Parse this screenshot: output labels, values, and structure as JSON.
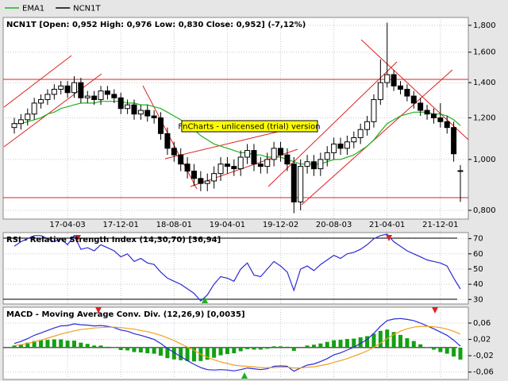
{
  "chart_data": [
    {
      "type": "candlestick",
      "title": "NCN1T [Open: 0,952  High: 0,976  Low: 0,830  Close: 0,952] (-7,12%)",
      "watermark": "FnCharts - unlicensed (trial) version",
      "categories": [
        null,
        null,
        null,
        null,
        null,
        null,
        null,
        null,
        "17-04-03",
        null,
        null,
        null,
        null,
        null,
        null,
        null,
        "17-12-01",
        null,
        null,
        null,
        null,
        null,
        null,
        null,
        "18-08-01",
        null,
        null,
        null,
        null,
        null,
        null,
        null,
        "19-04-01",
        null,
        null,
        null,
        null,
        null,
        null,
        null,
        "19-12-02",
        null,
        null,
        null,
        null,
        null,
        null,
        null,
        "20-08-03",
        null,
        null,
        null,
        null,
        null,
        null,
        null,
        "21-04-01",
        null,
        null,
        null,
        null,
        null,
        null,
        null,
        "21-12-01",
        null,
        null,
        null
      ],
      "log_scale": true,
      "grid": true,
      "ylim": [
        0.77,
        1.85
      ],
      "yticks": [
        {
          "value": 0.8,
          "label": "0,800"
        },
        {
          "value": 1.0,
          "label": "1,000"
        },
        {
          "value": 1.2,
          "label": "1,200"
        },
        {
          "value": 1.4,
          "label": "1,400"
        },
        {
          "value": 1.6,
          "label": "1,600"
        },
        {
          "value": 1.8,
          "label": "1,800"
        }
      ],
      "series": [
        {
          "name": "EMA1",
          "color": "#1fb21f",
          "values": [
            1.17,
            1.17,
            1.18,
            1.19,
            1.2,
            1.22,
            1.23,
            1.25,
            1.26,
            1.27,
            1.28,
            1.28,
            1.28,
            1.29,
            1.29,
            1.29,
            1.29,
            1.28,
            1.28,
            1.27,
            1.27,
            1.26,
            1.25,
            1.23,
            1.21,
            1.19,
            1.16,
            1.14,
            1.11,
            1.09,
            1.07,
            1.06,
            1.05,
            1.04,
            1.03,
            1.03,
            1.02,
            1.02,
            1.01,
            1.01,
            1.01,
            1.0,
            0.99,
            0.98,
            0.98,
            0.98,
            0.98,
            0.99,
            1.0,
            1.0,
            1.01,
            1.02,
            1.04,
            1.06,
            1.09,
            1.13,
            1.17,
            1.19,
            1.21,
            1.22,
            1.23,
            1.23,
            1.23,
            1.22,
            1.22,
            1.21,
            1.19,
            1.16
          ]
        },
        {
          "name": "NCN1T",
          "color": "#000000",
          "open": [
            1.15,
            1.17,
            1.19,
            1.22,
            1.28,
            1.3,
            1.33,
            1.36,
            1.38,
            1.34,
            1.4,
            1.31,
            1.32,
            1.3,
            1.35,
            1.33,
            1.31,
            1.25,
            1.27,
            1.22,
            1.24,
            1.21,
            1.2,
            1.12,
            1.05,
            1.02,
            0.98,
            0.95,
            0.92,
            0.9,
            0.91,
            0.94,
            0.98,
            0.97,
            0.96,
            1.01,
            1.04,
            0.98,
            0.97,
            1.0,
            1.05,
            1.02,
            0.98,
            0.83,
            0.97,
            0.99,
            0.96,
            1.0,
            1.03,
            1.07,
            1.05,
            1.08,
            1.1,
            1.14,
            1.18,
            1.3,
            1.4,
            1.45,
            1.38,
            1.36,
            1.32,
            1.28,
            1.24,
            1.22,
            1.2,
            1.18,
            1.15,
            0.952
          ],
          "high": [
            1.2,
            1.22,
            1.25,
            1.31,
            1.33,
            1.36,
            1.39,
            1.41,
            1.41,
            1.44,
            1.43,
            1.35,
            1.35,
            1.38,
            1.38,
            1.36,
            1.34,
            1.3,
            1.3,
            1.27,
            1.27,
            1.24,
            1.23,
            1.15,
            1.08,
            1.05,
            1.01,
            0.98,
            0.95,
            0.94,
            0.97,
            1.01,
            1.01,
            1.0,
            1.04,
            1.07,
            1.07,
            1.01,
            1.03,
            1.08,
            1.08,
            1.05,
            1.01,
            1.0,
            1.02,
            1.02,
            1.03,
            1.06,
            1.1,
            1.1,
            1.11,
            1.13,
            1.17,
            1.21,
            1.33,
            1.55,
            1.82,
            1.48,
            1.41,
            1.39,
            1.35,
            1.31,
            1.27,
            1.25,
            1.28,
            1.21,
            1.18,
            0.976
          ],
          "low": [
            1.12,
            1.14,
            1.16,
            1.19,
            1.25,
            1.27,
            1.3,
            1.33,
            1.31,
            1.31,
            1.28,
            1.28,
            1.27,
            1.27,
            1.3,
            1.28,
            1.22,
            1.22,
            1.19,
            1.19,
            1.18,
            1.17,
            1.09,
            1.02,
            0.99,
            0.95,
            0.92,
            0.89,
            0.87,
            0.87,
            0.88,
            0.91,
            0.94,
            0.93,
            0.93,
            0.98,
            0.95,
            0.94,
            0.94,
            0.97,
            0.99,
            0.95,
            0.79,
            0.8,
            0.94,
            0.93,
            0.93,
            0.97,
            1.0,
            1.02,
            1.02,
            1.05,
            1.07,
            1.11,
            1.15,
            1.27,
            1.37,
            1.35,
            1.33,
            1.29,
            1.25,
            1.21,
            1.19,
            1.17,
            1.15,
            1.12,
            0.99,
            0.83
          ],
          "close": [
            1.17,
            1.19,
            1.22,
            1.28,
            1.3,
            1.33,
            1.36,
            1.38,
            1.34,
            1.4,
            1.31,
            1.32,
            1.3,
            1.35,
            1.33,
            1.31,
            1.25,
            1.27,
            1.22,
            1.24,
            1.21,
            1.2,
            1.12,
            1.05,
            1.02,
            0.98,
            0.95,
            0.92,
            0.9,
            0.91,
            0.94,
            0.98,
            0.97,
            0.96,
            1.01,
            1.04,
            0.98,
            0.97,
            1.0,
            1.05,
            1.02,
            0.98,
            0.83,
            0.97,
            0.99,
            0.96,
            1.0,
            1.03,
            1.07,
            1.05,
            1.08,
            1.1,
            1.14,
            1.18,
            1.3,
            1.4,
            1.45,
            1.38,
            1.36,
            1.32,
            1.28,
            1.24,
            1.22,
            1.2,
            1.18,
            1.15,
            1.025,
            0.952
          ]
        }
      ]
    },
    {
      "type": "line",
      "title": "RSI - Relative Strength Index (14,30,70) [36,94]",
      "grid": true,
      "ylim": [
        27,
        74
      ],
      "yticks": [
        30,
        40,
        50,
        60,
        70
      ],
      "series": [
        {
          "color": "#2b2bd6",
          "values": [
            65,
            68,
            70,
            72,
            72,
            70,
            68,
            70,
            66,
            72,
            63,
            64,
            62,
            66,
            64,
            62,
            58,
            60,
            55,
            57,
            54,
            53,
            48,
            44,
            42,
            40,
            37,
            34,
            29,
            33,
            40,
            45,
            44,
            42,
            50,
            54,
            46,
            45,
            50,
            55,
            52,
            48,
            36,
            50,
            52,
            49,
            53,
            56,
            59,
            57,
            60,
            61,
            63,
            66,
            70,
            72,
            73,
            68,
            65,
            62,
            60,
            58,
            56,
            55,
            54,
            52,
            44,
            36.94
          ]
        }
      ]
    },
    {
      "type": "line",
      "title": "MACD - Moving Average Conv. Div. (12,26,9) [0,0035]",
      "grid": true,
      "ylim": [
        -0.078,
        0.095
      ],
      "yticks": [
        {
          "value": -0.06,
          "label": "-0,06"
        },
        {
          "value": -0.02,
          "label": "-0,02"
        },
        {
          "value": 0.02,
          "label": "0,02"
        },
        {
          "value": 0.06,
          "label": "0,06"
        }
      ],
      "series": [
        {
          "type": "bar",
          "color": "#14a014",
          "values": [
            0.005,
            0.008,
            0.012,
            0.016,
            0.018,
            0.019,
            0.02,
            0.02,
            0.017,
            0.017,
            0.012,
            0.009,
            0.005,
            0.005,
            0.002,
            -0.001,
            -0.006,
            -0.007,
            -0.011,
            -0.012,
            -0.014,
            -0.015,
            -0.02,
            -0.026,
            -0.029,
            -0.031,
            -0.033,
            -0.034,
            -0.033,
            -0.03,
            -0.025,
            -0.019,
            -0.016,
            -0.014,
            -0.009,
            -0.004,
            -0.005,
            -0.005,
            -0.003,
            0.003,
            0.003,
            0.002,
            -0.008,
            0.0,
            0.005,
            0.007,
            0.01,
            0.014,
            0.018,
            0.019,
            0.021,
            0.022,
            0.025,
            0.028,
            0.034,
            0.041,
            0.044,
            0.038,
            0.031,
            0.023,
            0.016,
            0.008,
            0.001,
            -0.005,
            -0.011,
            -0.015,
            -0.022,
            -0.0295
          ]
        },
        {
          "color": "#2b2bd6",
          "values": [
            0.01,
            0.015,
            0.022,
            0.03,
            0.036,
            0.042,
            0.048,
            0.053,
            0.054,
            0.058,
            0.056,
            0.055,
            0.053,
            0.054,
            0.052,
            0.049,
            0.043,
            0.04,
            0.034,
            0.03,
            0.025,
            0.02,
            0.01,
            -0.002,
            -0.012,
            -0.022,
            -0.032,
            -0.041,
            -0.049,
            -0.054,
            -0.055,
            -0.054,
            -0.055,
            -0.057,
            -0.054,
            -0.05,
            -0.052,
            -0.054,
            -0.052,
            -0.046,
            -0.045,
            -0.046,
            -0.058,
            -0.05,
            -0.043,
            -0.04,
            -0.034,
            -0.027,
            -0.018,
            -0.013,
            -0.006,
            0.001,
            0.01,
            0.02,
            0.035,
            0.052,
            0.066,
            0.07,
            0.071,
            0.069,
            0.066,
            0.06,
            0.053,
            0.046,
            0.038,
            0.03,
            0.018,
            0.0035
          ]
        },
        {
          "color": "#f0a020",
          "values": [
            0.005,
            0.007,
            0.01,
            0.014,
            0.018,
            0.023,
            0.028,
            0.033,
            0.037,
            0.041,
            0.044,
            0.046,
            0.048,
            0.049,
            0.05,
            0.05,
            0.049,
            0.047,
            0.045,
            0.042,
            0.039,
            0.035,
            0.03,
            0.024,
            0.017,
            0.009,
            0.001,
            -0.007,
            -0.016,
            -0.024,
            -0.03,
            -0.035,
            -0.039,
            -0.043,
            -0.045,
            -0.046,
            -0.047,
            -0.049,
            -0.049,
            -0.049,
            -0.048,
            -0.048,
            -0.05,
            -0.05,
            -0.048,
            -0.047,
            -0.044,
            -0.041,
            -0.036,
            -0.032,
            -0.027,
            -0.021,
            -0.015,
            -0.008,
            0.001,
            0.011,
            0.022,
            0.032,
            0.04,
            0.046,
            0.05,
            0.052,
            0.052,
            0.051,
            0.049,
            0.045,
            0.04,
            0.033
          ]
        }
      ]
    }
  ]
}
